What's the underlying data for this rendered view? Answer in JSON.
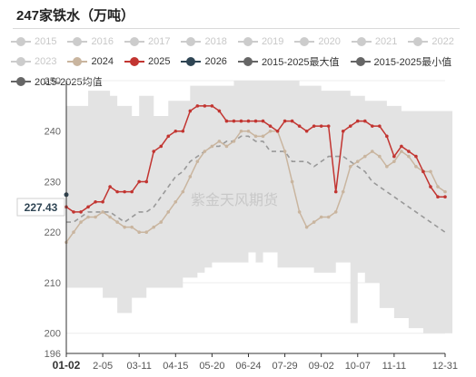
{
  "header": {
    "title": "247家铁水（万吨）"
  },
  "legend": {
    "rows": [
      [
        {
          "label": "2015",
          "color": "#cccccc",
          "dim": true
        },
        {
          "label": "2016",
          "color": "#cccccc",
          "dim": true
        },
        {
          "label": "2017",
          "color": "#cccccc",
          "dim": true
        },
        {
          "label": "2018",
          "color": "#cccccc",
          "dim": true
        },
        {
          "label": "2019",
          "color": "#cccccc",
          "dim": true
        },
        {
          "label": "2020",
          "color": "#cccccc",
          "dim": true
        },
        {
          "label": "2021",
          "color": "#cccccc",
          "dim": true
        },
        {
          "label": "2022",
          "color": "#cccccc",
          "dim": true
        }
      ],
      [
        {
          "label": "2023",
          "color": "#cccccc",
          "dim": true
        },
        {
          "label": "2024",
          "color": "#c9b59f",
          "dim": false
        },
        {
          "label": "2025",
          "color": "#c23531",
          "dim": false
        },
        {
          "label": "2026",
          "color": "#2f4554",
          "dim": false
        },
        {
          "label": "2015-2025最大值",
          "color": "#666666",
          "dim": false
        },
        {
          "label": "2015-2025最小值",
          "color": "#666666",
          "dim": false
        }
      ],
      [
        {
          "label": "2015-2025均值",
          "color": "#666666",
          "dim": false
        }
      ]
    ]
  },
  "watermark": "紫金天风期货",
  "value_label": "227.43",
  "chart_data": {
    "type": "line",
    "title": "247家铁水（万吨）",
    "ylim": [
      196,
      250
    ],
    "y_ticks": [
      196,
      200,
      210,
      220,
      230,
      240,
      250
    ],
    "x_ticks": [
      "01-02",
      "2-05",
      "03-11",
      "04-15",
      "05-20",
      "06-24",
      "07-29",
      "09-02",
      "10-07",
      "11-11",
      "12-31"
    ],
    "x_tick_weeks": [
      0,
      5,
      10,
      15,
      20,
      25,
      30,
      35,
      40,
      45,
      52
    ],
    "grid": true,
    "band": {
      "name_max": "2015-2025最大值",
      "name_min": "2015-2025最小值",
      "max": [
        245,
        245,
        245,
        248,
        248,
        248,
        247,
        245,
        245,
        243,
        247,
        247,
        243,
        243,
        246,
        246,
        246,
        249,
        249,
        249,
        249,
        249,
        249,
        250,
        250,
        250,
        250,
        250,
        250,
        250,
        250,
        250,
        249,
        249,
        249,
        248,
        248,
        248,
        248,
        247,
        247,
        246,
        246,
        246,
        245,
        245,
        244,
        244,
        244,
        244,
        244,
        244,
        244
      ],
      "min": [
        209,
        209,
        209,
        209,
        209,
        207,
        207,
        204,
        204,
        207,
        207,
        209,
        209,
        209,
        209,
        209,
        211,
        211,
        212,
        213,
        214,
        214,
        214,
        214,
        214,
        216,
        214,
        216,
        216,
        213,
        213,
        213,
        213,
        213,
        212,
        212,
        212,
        214,
        214,
        202,
        212,
        210,
        210,
        205,
        205,
        203,
        203,
        201,
        201,
        200,
        200,
        200,
        200
      ]
    },
    "series": [
      {
        "name": "2015-2025均值",
        "color": "#999999",
        "style": "dashed",
        "values": [
          222,
          222,
          223,
          224,
          224,
          224,
          224,
          223,
          222,
          223,
          224,
          224,
          225,
          227,
          229,
          231,
          232,
          234,
          235,
          236,
          237,
          237,
          238,
          238,
          239,
          239,
          238,
          238,
          236,
          236,
          236,
          234,
          234,
          234,
          233,
          234,
          235,
          235,
          235,
          234,
          233,
          232,
          230,
          229,
          228,
          227,
          226,
          225,
          224,
          223,
          222,
          221,
          220
        ]
      },
      {
        "name": "2024",
        "color": "#c9b59f",
        "values": [
          218,
          220,
          222,
          223,
          223,
          224,
          223,
          222,
          221,
          221,
          220,
          220,
          221,
          222,
          224,
          226,
          228,
          231,
          234,
          236,
          237,
          238,
          237,
          238,
          240,
          240,
          239,
          239,
          240,
          240,
          236,
          230,
          224,
          221,
          222,
          223,
          223,
          224,
          228,
          233,
          234,
          235,
          236,
          235,
          233,
          234,
          236,
          235,
          233,
          232,
          232,
          229,
          228
        ]
      },
      {
        "name": "2025",
        "color": "#c23531",
        "values": [
          225,
          224,
          224,
          225,
          226,
          226,
          229,
          228,
          228,
          228,
          230,
          230,
          236,
          237,
          239,
          240,
          240,
          244,
          245,
          245,
          245,
          244,
          242,
          242,
          242,
          242,
          242,
          242,
          241,
          240,
          242,
          242,
          241,
          240,
          241,
          241,
          241,
          228,
          240,
          241,
          242,
          242,
          241,
          241,
          239,
          235,
          237,
          236,
          235,
          232,
          229,
          227,
          227
        ]
      },
      {
        "name": "2026",
        "color": "#2f4554",
        "values": [
          227.43
        ]
      }
    ]
  }
}
